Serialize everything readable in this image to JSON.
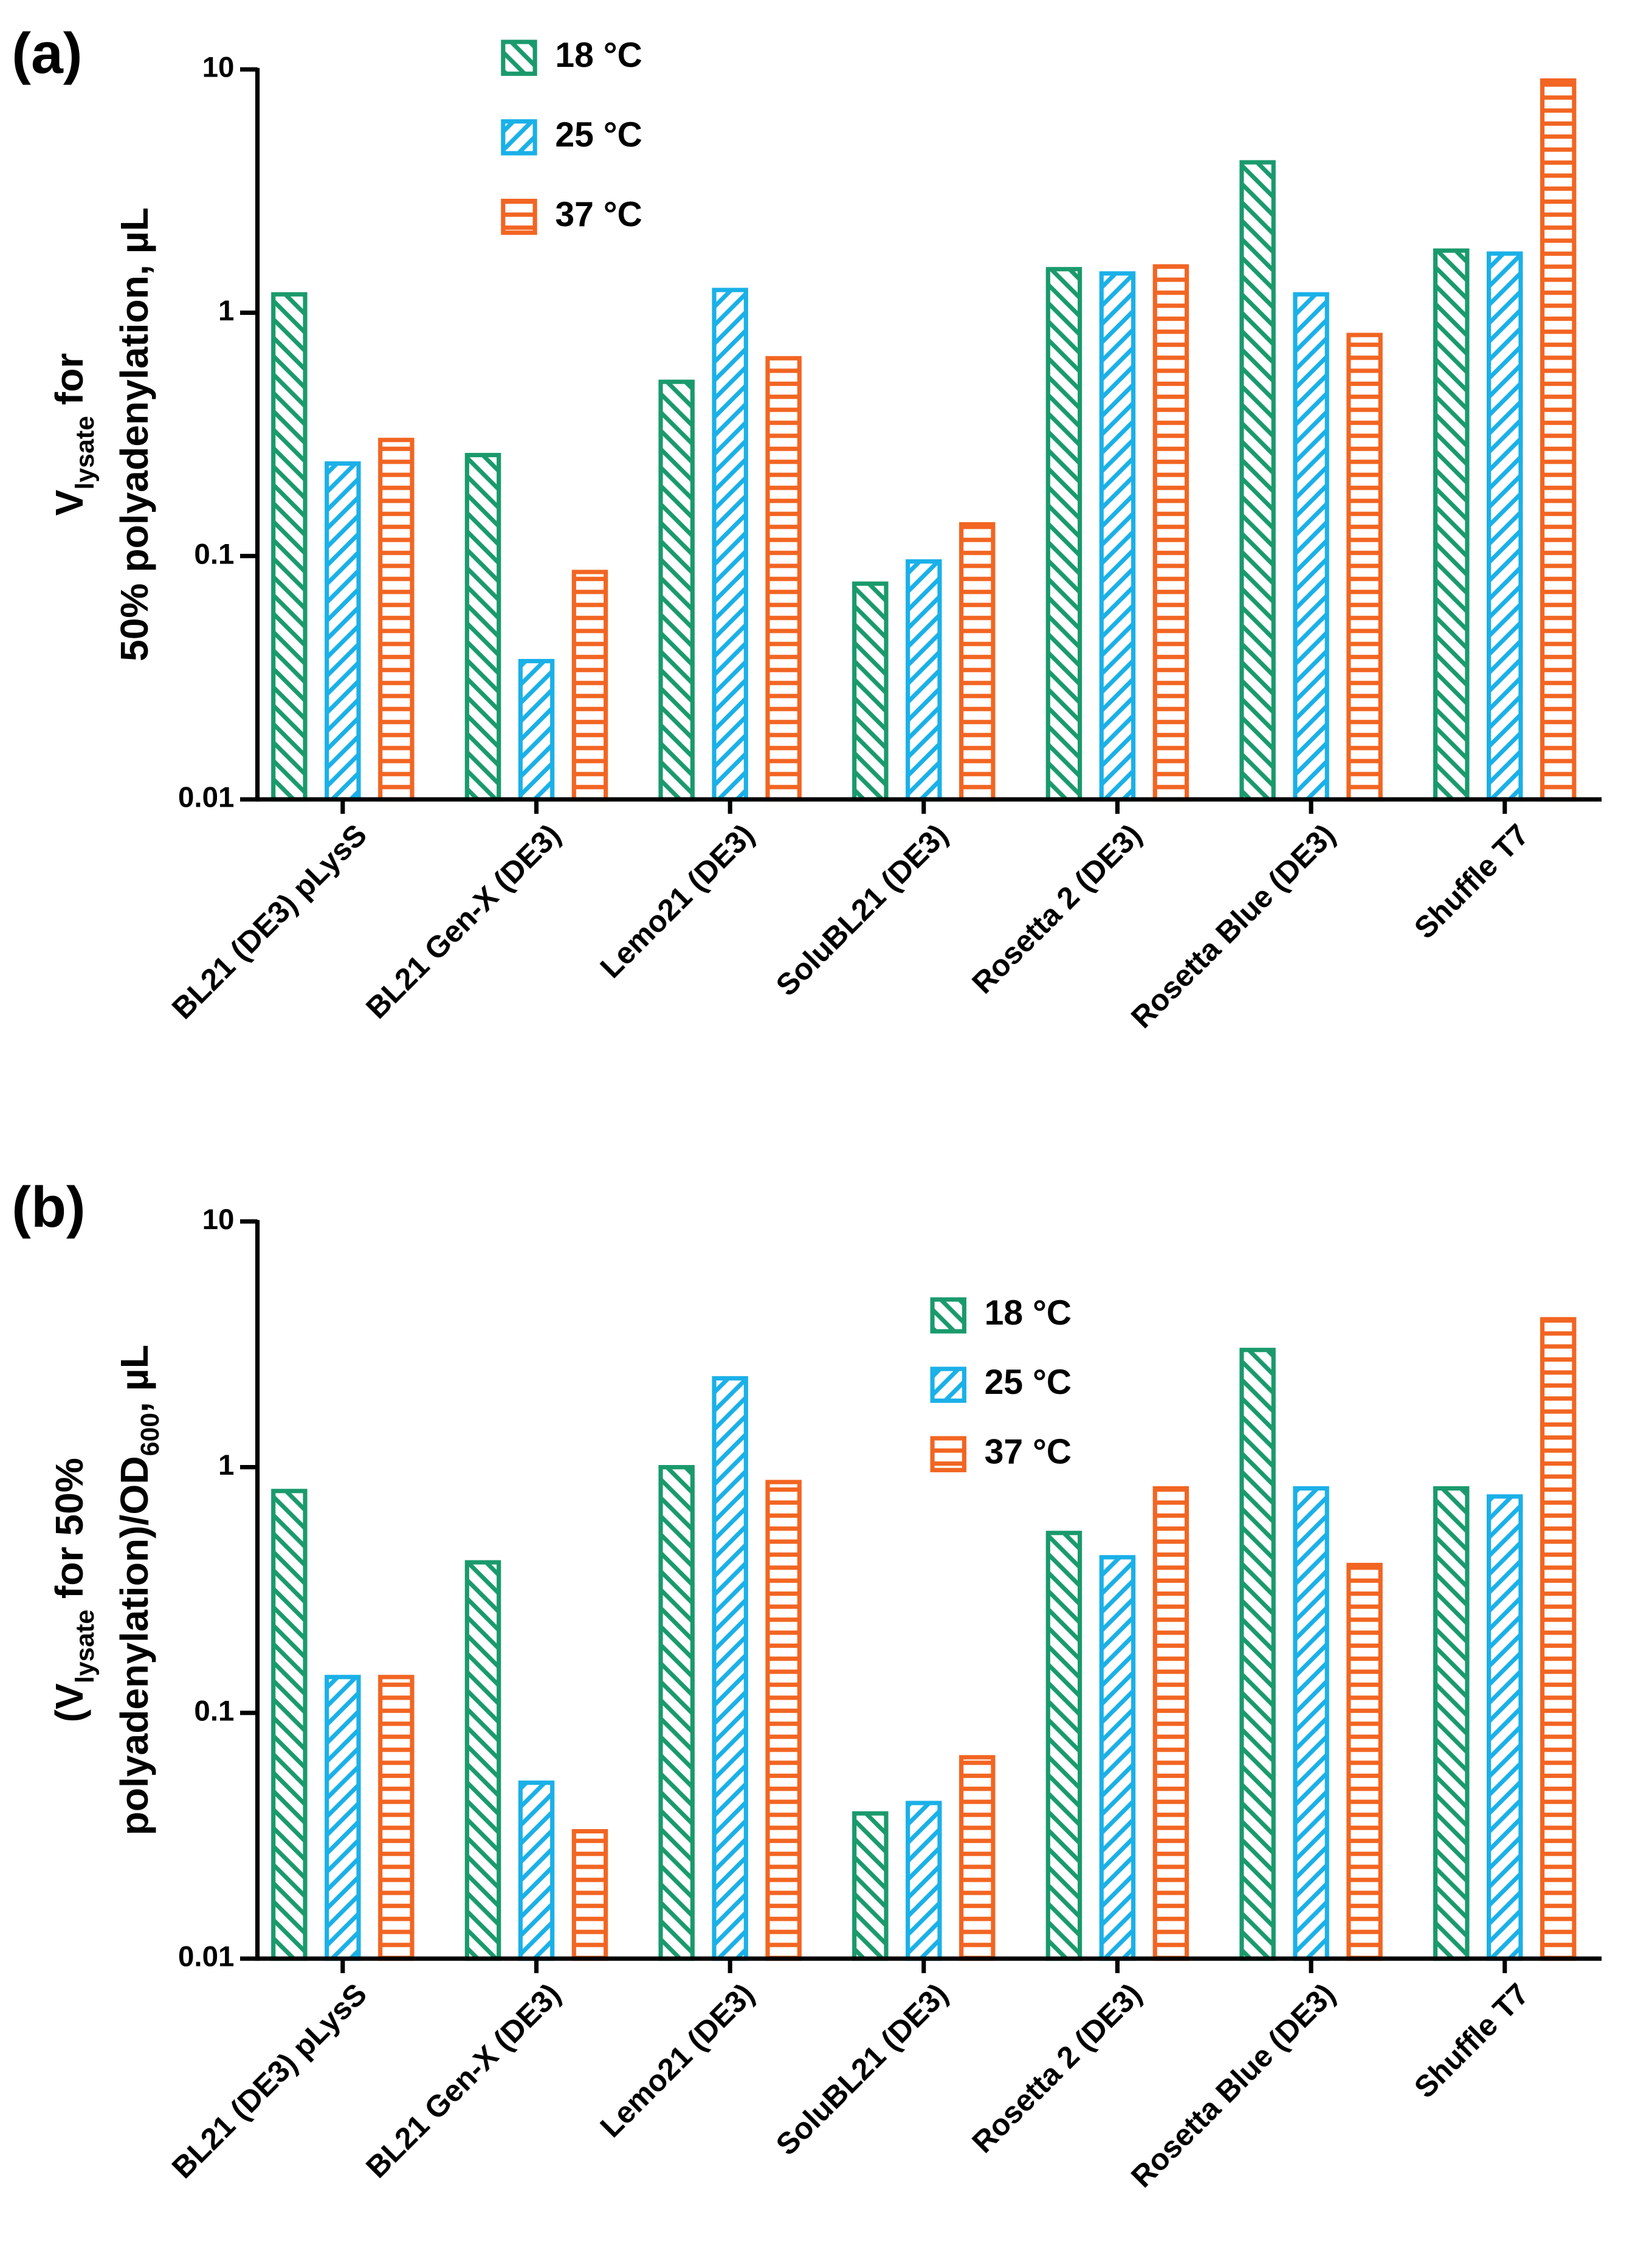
{
  "chart_data": [
    {
      "type": "bar",
      "panel_label": "(a)",
      "log_scale": true,
      "legend_position": "top",
      "ylabel": [
        [
          {
            "text": "V"
          },
          {
            "text": "lysate",
            "sub": true
          },
          {
            "text": " for"
          }
        ],
        [
          {
            "text": "50% polyadenylation, µL"
          }
        ]
      ],
      "categories": [
        "BL21 (DE3) pLysS",
        "BL21 Gen-X (DE3)",
        "Lemo21 (DE3)",
        "SoluBL21 (DE3)",
        "Rosetta 2 (DE3)",
        "Rosetta Blue (DE3)",
        "Shuffle T7"
      ],
      "series": [
        {
          "name": "18 °C",
          "color": "#1a9a6c",
          "hatch": "\\",
          "values": [
            1.19,
            0.26,
            0.52,
            0.077,
            1.51,
            4.15,
            1.8
          ]
        },
        {
          "name": "25 °C",
          "color": "#1ab0e8",
          "hatch": "/",
          "values": [
            0.24,
            0.037,
            1.24,
            0.095,
            1.45,
            1.19,
            1.75
          ]
        },
        {
          "name": "37 °C",
          "color": "#f26522",
          "hatch": "-",
          "values": [
            0.3,
            0.086,
            0.65,
            0.135,
            1.55,
            0.81,
            9
          ]
        }
      ],
      "ylim": [
        0.01,
        10
      ],
      "yticks": [
        0.01,
        0.1,
        1,
        10
      ]
    },
    {
      "type": "bar",
      "panel_label": "(b)",
      "log_scale": true,
      "legend_position": "top-right",
      "ylabel": [
        [
          {
            "text": "(V"
          },
          {
            "text": "lysate",
            "sub": true
          },
          {
            "text": " for 50%"
          }
        ],
        [
          {
            "text": "polyadenylation)/OD"
          },
          {
            "text": "600",
            "sub": true
          },
          {
            "text": ", µL"
          }
        ]
      ],
      "categories": [
        "BL21 (DE3) pLysS",
        "BL21 Gen-X (DE3)",
        "Lemo21 (DE3)",
        "SoluBL21 (DE3)",
        "Rosetta 2 (DE3)",
        "Rosetta Blue (DE3)",
        "Shuffle T7"
      ],
      "series": [
        {
          "name": "18 °C",
          "color": "#1a9a6c",
          "hatch": "\\",
          "values": [
            0.8,
            0.41,
            1.0,
            0.039,
            0.54,
            3.0,
            0.82
          ]
        },
        {
          "name": "25 °C",
          "color": "#1ab0e8",
          "hatch": "/",
          "values": [
            0.14,
            0.052,
            2.3,
            0.043,
            0.43,
            0.82,
            0.76
          ]
        },
        {
          "name": "37 °C",
          "color": "#f26522",
          "hatch": "-",
          "values": [
            0.14,
            0.033,
            0.87,
            0.066,
            0.82,
            0.4,
            4.0
          ]
        }
      ],
      "ylim": [
        0.01,
        10
      ],
      "yticks": [
        0.01,
        0.1,
        1,
        10
      ]
    }
  ]
}
